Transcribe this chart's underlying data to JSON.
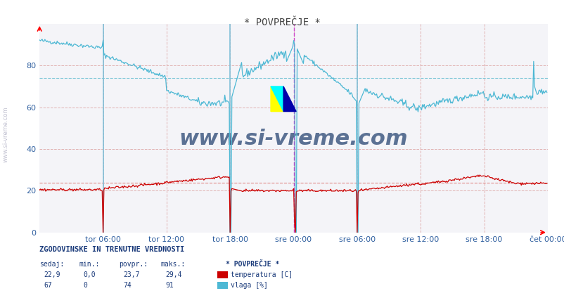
{
  "title": "* POVPREČJE *",
  "bg_color": "#ffffff",
  "plot_bg_color": "#f4f4f8",
  "temp_color": "#cc0000",
  "vlaga_color": "#4db8d4",
  "ylabel_color": "#3060a0",
  "title_color": "#404040",
  "xlabels": [
    "tor 06:00",
    "tor 12:00",
    "tor 18:00",
    "sre 00:00",
    "sre 06:00",
    "sre 12:00",
    "sre 18:00",
    "čet 00:00"
  ],
  "xtick_positions": [
    72,
    144,
    216,
    288,
    360,
    432,
    504,
    576
  ],
  "ylim": [
    0,
    100
  ],
  "temp_avg": 23.7,
  "vlaga_avg": 74,
  "info_title": "ZGODOVINSKE IN TRENUTNE VREDNOSTI",
  "info_headers": [
    "sedaj:",
    "min.:",
    "povpr.:",
    "maks.:"
  ],
  "info_temp": [
    "22,9",
    "0,0",
    "23,7",
    "29,4"
  ],
  "info_vlaga": [
    "67",
    "0",
    "74",
    "91"
  ],
  "legend_title": "* POVPREČJE *",
  "legend_temp": "temperatura [C]",
  "legend_vlaga": "vlaga [%]",
  "total_points": 576
}
